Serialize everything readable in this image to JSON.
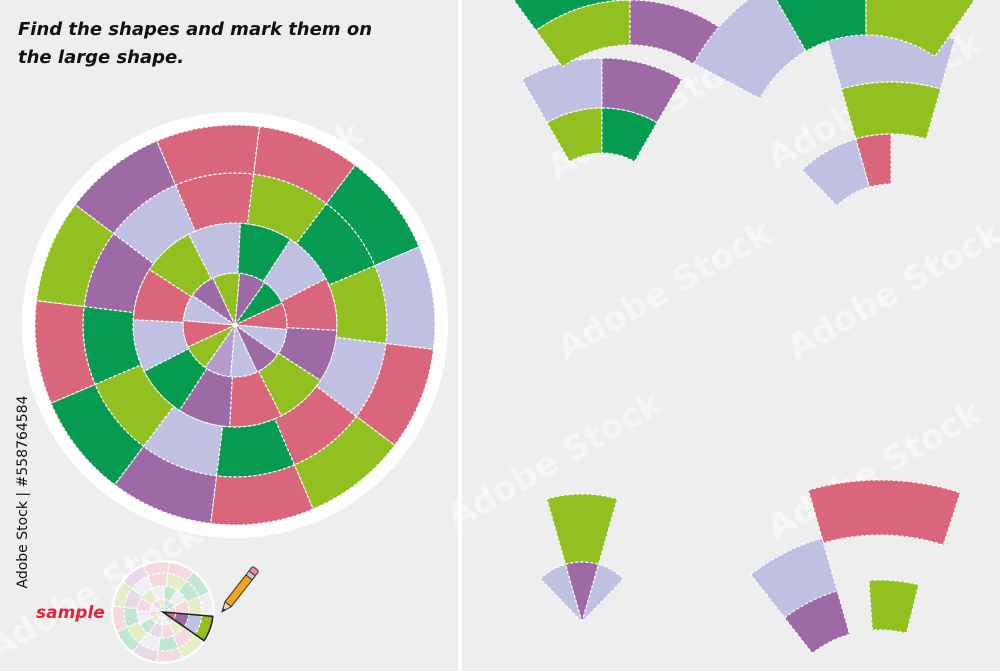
{
  "instruction": "Find the shapes and mark them on the large shape.",
  "sample_label": "sample",
  "stock_id": "Adobe Stock | #558764584",
  "watermark": "Adobe Stock",
  "colors": {
    "background": "#eeeeee",
    "pink": "#d9667a",
    "lavender": "#bfc0e2",
    "lime": "#93c021",
    "green": "#069b50",
    "purple": "#9e6aa5",
    "light_purple": "#b39ccb",
    "sample_text": "#e8233c"
  },
  "big_wheel": {
    "rings": [
      [
        "purple",
        "green",
        "pink",
        "lavender",
        "purple",
        "lavender",
        "light_purple",
        "lime",
        "pink",
        "lavender",
        "purple",
        "lime"
      ],
      [
        "green",
        "lavender",
        "pink",
        "purple",
        "lime",
        "pink",
        "purple",
        "green",
        "lavender",
        "pink",
        "lime",
        "lavender"
      ],
      [
        "lime",
        "green",
        "lime",
        "lavender",
        "pink",
        "green",
        "lavender",
        "lime",
        "green",
        "purple",
        "lavender",
        "pink"
      ],
      [
        "pink",
        "green",
        "lavender",
        "pink",
        "lime",
        "pink",
        "purple",
        "green",
        "pink",
        "lime",
        "purple",
        "pink"
      ]
    ]
  },
  "sample_wheel": {
    "highlighted": [
      "pink",
      "purple",
      "lavender",
      "lime"
    ]
  },
  "puzzle_pieces": [
    {
      "name": "piece-1",
      "colors": [
        "lavender",
        "purple",
        "lime",
        "green"
      ]
    },
    {
      "name": "piece-2",
      "colors": [
        "lavender",
        "lime",
        "lavender",
        "pink"
      ]
    },
    {
      "name": "piece-3",
      "colors": [
        "lime",
        "purple",
        "green",
        "green"
      ]
    },
    {
      "name": "piece-4",
      "colors": [
        "lavender",
        "green",
        "lime",
        "purple"
      ]
    },
    {
      "name": "piece-5",
      "colors": [
        "lime",
        "lavender",
        "purple",
        "lavender"
      ]
    },
    {
      "name": "piece-6",
      "colors": [
        "pink",
        "lavender",
        "purple",
        "lime"
      ]
    }
  ]
}
